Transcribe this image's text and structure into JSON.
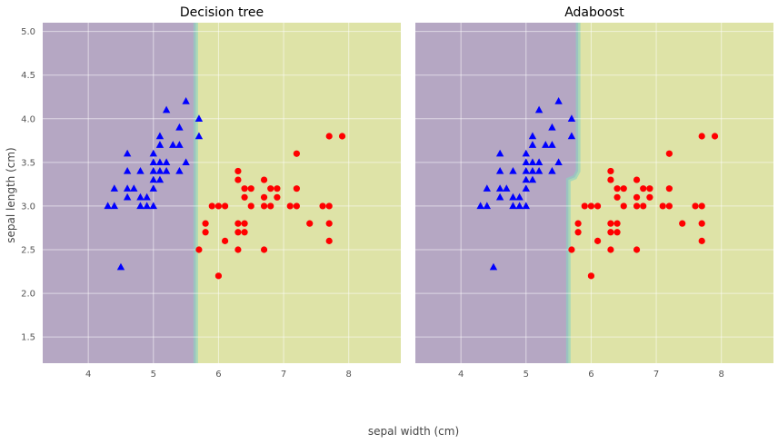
{
  "colors": {
    "region_class0": "#b5a7c3",
    "region_class1": "#dee3a7",
    "boundary_band": "#8ed3c0",
    "class0_marker": "#0000ff",
    "class1_marker": "#ff0000",
    "gridline": "#ffffff",
    "tick_text": "#555555"
  },
  "chart_data": {
    "type": "scatter",
    "xlabel": "sepal width (cm)",
    "ylabel": "sepal length (cm)",
    "xlim": [
      3.3,
      8.8
    ],
    "ylim": [
      1.2,
      5.1
    ],
    "xticks": [
      "4",
      "5",
      "6",
      "7",
      "8"
    ],
    "yticks": [
      "1.5",
      "2.0",
      "2.5",
      "3.0",
      "3.5",
      "4.0",
      "4.5",
      "5.0"
    ],
    "grid": true,
    "shared_y": true,
    "panels": [
      {
        "title": "Decision tree",
        "boundary": [
          [
            5.65,
            1.2
          ],
          [
            5.65,
            5.1
          ]
        ]
      },
      {
        "title": "Adaboost",
        "boundary": [
          [
            5.65,
            1.2
          ],
          [
            5.65,
            3.3
          ],
          [
            5.75,
            3.33
          ],
          [
            5.8,
            3.4
          ],
          [
            5.8,
            5.1
          ]
        ]
      }
    ],
    "series": [
      {
        "marker": "triangle",
        "color": "#0000ff",
        "points": [
          [
            4.3,
            3.0
          ],
          [
            4.4,
            3.0
          ],
          [
            4.4,
            3.2
          ],
          [
            4.5,
            2.3
          ],
          [
            4.6,
            3.1
          ],
          [
            4.6,
            3.2
          ],
          [
            4.6,
            3.4
          ],
          [
            4.6,
            3.6
          ],
          [
            4.7,
            3.2
          ],
          [
            4.8,
            3.0
          ],
          [
            4.8,
            3.1
          ],
          [
            4.8,
            3.4
          ],
          [
            4.9,
            3.0
          ],
          [
            4.9,
            3.1
          ],
          [
            5.0,
            3.0
          ],
          [
            5.0,
            3.2
          ],
          [
            5.0,
            3.3
          ],
          [
            5.0,
            3.4
          ],
          [
            5.0,
            3.5
          ],
          [
            5.0,
            3.6
          ],
          [
            5.1,
            3.3
          ],
          [
            5.1,
            3.4
          ],
          [
            5.1,
            3.5
          ],
          [
            5.1,
            3.7
          ],
          [
            5.1,
            3.8
          ],
          [
            5.2,
            3.4
          ],
          [
            5.2,
            3.5
          ],
          [
            5.2,
            4.1
          ],
          [
            5.3,
            3.7
          ],
          [
            5.4,
            3.4
          ],
          [
            5.4,
            3.7
          ],
          [
            5.4,
            3.9
          ],
          [
            5.5,
            3.5
          ],
          [
            5.5,
            4.2
          ],
          [
            5.7,
            3.8
          ],
          [
            5.7,
            4.0
          ]
        ]
      },
      {
        "marker": "circle",
        "color": "#ff0000",
        "points": [
          [
            5.7,
            2.5
          ],
          [
            5.8,
            2.7
          ],
          [
            5.8,
            2.8
          ],
          [
            5.9,
            3.0
          ],
          [
            6.0,
            2.2
          ],
          [
            6.0,
            3.0
          ],
          [
            6.1,
            2.6
          ],
          [
            6.1,
            3.0
          ],
          [
            6.3,
            2.5
          ],
          [
            6.3,
            2.7
          ],
          [
            6.3,
            2.8
          ],
          [
            6.3,
            3.3
          ],
          [
            6.3,
            3.4
          ],
          [
            6.4,
            2.7
          ],
          [
            6.4,
            2.8
          ],
          [
            6.4,
            3.1
          ],
          [
            6.4,
            3.2
          ],
          [
            6.5,
            3.0
          ],
          [
            6.5,
            3.2
          ],
          [
            6.7,
            2.5
          ],
          [
            6.7,
            3.0
          ],
          [
            6.7,
            3.1
          ],
          [
            6.7,
            3.3
          ],
          [
            6.8,
            3.0
          ],
          [
            6.8,
            3.2
          ],
          [
            6.9,
            3.1
          ],
          [
            6.9,
            3.2
          ],
          [
            7.1,
            3.0
          ],
          [
            7.2,
            3.0
          ],
          [
            7.2,
            3.2
          ],
          [
            7.2,
            3.6
          ],
          [
            7.4,
            2.8
          ],
          [
            7.6,
            3.0
          ],
          [
            7.7,
            2.6
          ],
          [
            7.7,
            2.8
          ],
          [
            7.7,
            3.0
          ],
          [
            7.7,
            3.8
          ],
          [
            7.9,
            3.8
          ]
        ]
      }
    ]
  }
}
